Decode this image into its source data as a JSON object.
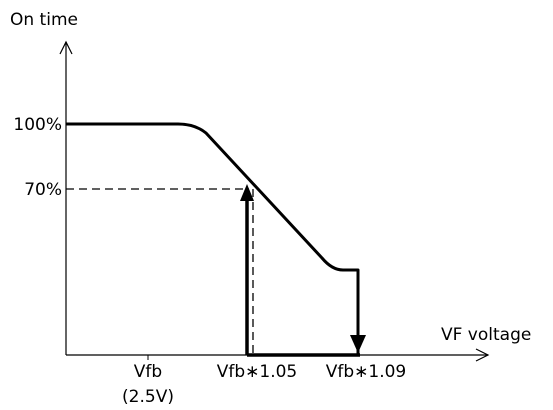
{
  "chart_data": {
    "type": "line",
    "ylabel": "On time",
    "xlabel": "VF voltage",
    "y_ticks": [
      "100%",
      "70%"
    ],
    "x_ticks": [
      "Vfb",
      "Vfb∗1.05",
      "Vfb∗1.09"
    ],
    "x_tick_sub": "(2.5V)",
    "series": [
      {
        "points": [
          {
            "x": "0",
            "y": "100%"
          },
          {
            "x": "Vfb",
            "y": "100%"
          },
          {
            "x": "Vfb∗1.05",
            "y": "70%"
          },
          {
            "x": "Vfb∗1.09",
            "y": "~40%"
          }
        ]
      }
    ],
    "annotations": [
      "dashed line at 70% to Vfb∗1.05",
      "up arrow at Vfb∗1.05",
      "down arrow at Vfb∗1.09",
      "bold baseline between Vfb∗1.05 and Vfb∗1.09"
    ]
  }
}
